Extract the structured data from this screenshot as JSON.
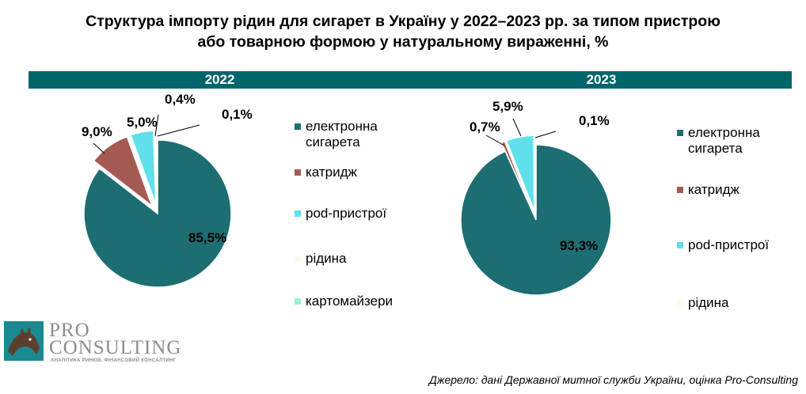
{
  "title_line1": "Структура імпорту рідин для сигарет в Україну у 2022–2023  рр. за типом пристрою",
  "title_line2": "або товарною формою у натуральному вираженні, %",
  "source": "Джерело: дані Державної митної служби України, оцінка Pro-Consulting",
  "logo": {
    "pro": "PRO",
    "consulting": "CONSULTING",
    "tagline": "АНАЛІТИКА РИНКІВ. ФІНАНСОВИЙ КОНСАЛТИНГ"
  },
  "colors": {
    "band": "#00656b",
    "електронна сигарета": "#1c6e72",
    "катридж": "#a45a52",
    "pod-пристрої": "#5fe0ea",
    "рідина": "#fffbea",
    "картомайзери": "#9cf0d6"
  },
  "chart_data": [
    {
      "type": "pie",
      "title": "2022",
      "categories": [
        "електронна сигарета",
        "катридж",
        "pod-пристрої",
        "рідина",
        "картомайзери"
      ],
      "values": [
        85.5,
        9.0,
        5.0,
        0.4,
        0.1
      ],
      "labels": [
        "85,5%",
        "9,0%",
        "5,0%",
        "0,4%",
        "0,1%"
      ],
      "legend": [
        "електронна сигарета",
        "катридж",
        "pod-пристрої",
        "рідина",
        "картомайзери"
      ],
      "legend_placement": "right"
    },
    {
      "type": "pie",
      "title": "2023",
      "categories": [
        "електронна сигарета",
        "катридж",
        "pod-пристрої",
        "рідина"
      ],
      "values": [
        93.3,
        0.7,
        5.9,
        0.1
      ],
      "labels": [
        "93,3%",
        "0,7%",
        "5,9%",
        "0,1%"
      ],
      "legend": [
        "електронна сигарета",
        "катридж",
        "pod-пристрої",
        "рідина"
      ],
      "legend_placement": "right"
    }
  ]
}
